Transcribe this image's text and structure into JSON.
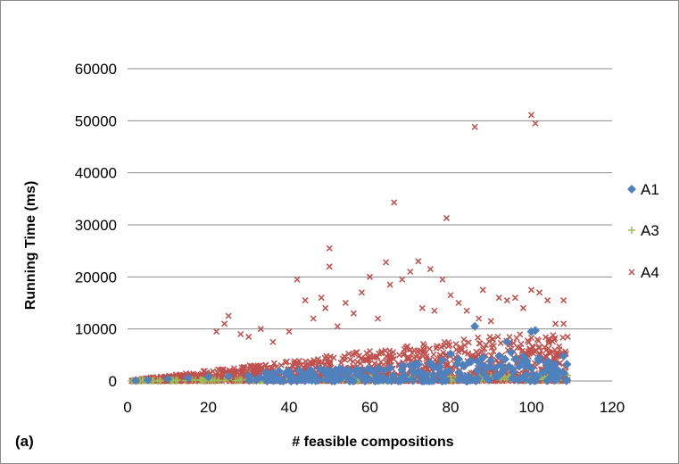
{
  "panel_label": "(a)",
  "colors": {
    "A1": "#4f81bd",
    "A3": "#9bbb59",
    "A4": "#c0504d",
    "grid": "#8c8c8c"
  },
  "chart_data": {
    "type": "scatter",
    "title": "",
    "xlabel": "# feasible compositions",
    "ylabel": "Running Time (ms)",
    "xlim": [
      0,
      120
    ],
    "ylim": [
      0,
      60000
    ],
    "xticks": [
      "0",
      "20",
      "40",
      "60",
      "80",
      "100",
      "120"
    ],
    "yticks": [
      "0",
      "10000",
      "20000",
      "30000",
      "40000",
      "50000",
      "60000"
    ],
    "grid": "horizontal",
    "legend": "right",
    "series": [
      {
        "name": "A1",
        "marker": "diamond",
        "points": [
          [
            2,
            100
          ],
          [
            5,
            200
          ],
          [
            10,
            400
          ],
          [
            15,
            600
          ],
          [
            20,
            800
          ],
          [
            25,
            900
          ],
          [
            30,
            1000
          ],
          [
            35,
            1100
          ],
          [
            40,
            1200
          ],
          [
            45,
            1400
          ],
          [
            50,
            1600
          ],
          [
            55,
            1800
          ],
          [
            60,
            2200
          ],
          [
            65,
            2500
          ],
          [
            70,
            3000
          ],
          [
            72,
            3200
          ],
          [
            75,
            3500
          ],
          [
            78,
            4000
          ],
          [
            80,
            5200
          ],
          [
            82,
            4200
          ],
          [
            85,
            3800
          ],
          [
            86,
            10500
          ],
          [
            88,
            4500
          ],
          [
            90,
            3900
          ],
          [
            92,
            4800
          ],
          [
            94,
            7500
          ],
          [
            95,
            5500
          ],
          [
            96,
            4200
          ],
          [
            98,
            4700
          ],
          [
            100,
            9500
          ],
          [
            101,
            9700
          ],
          [
            102,
            4300
          ],
          [
            104,
            3000
          ],
          [
            105,
            2600
          ],
          [
            106,
            2000
          ],
          [
            108,
            4800
          ],
          [
            108,
            1400
          ],
          [
            99,
            3200
          ],
          [
            97,
            2800
          ],
          [
            91,
            2500
          ],
          [
            83,
            3100
          ],
          [
            77,
            2700
          ],
          [
            68,
            2900
          ],
          [
            62,
            2400
          ],
          [
            57,
            2100
          ]
        ]
      },
      {
        "name": "A3",
        "marker": "plus",
        "points": [
          [
            1,
            50
          ],
          [
            3,
            80
          ],
          [
            5,
            100
          ],
          [
            8,
            150
          ],
          [
            12,
            200
          ],
          [
            16,
            250
          ],
          [
            20,
            300
          ],
          [
            25,
            350
          ],
          [
            30,
            400
          ],
          [
            35,
            450
          ],
          [
            40,
            500
          ],
          [
            45,
            550
          ],
          [
            50,
            600
          ],
          [
            55,
            650
          ],
          [
            60,
            700
          ],
          [
            65,
            750
          ],
          [
            70,
            800
          ],
          [
            75,
            850
          ],
          [
            80,
            900
          ],
          [
            85,
            950
          ],
          [
            90,
            1000
          ],
          [
            95,
            1100
          ],
          [
            100,
            1200
          ],
          [
            102,
            1300
          ],
          [
            104,
            1600
          ],
          [
            106,
            1200
          ],
          [
            107,
            1000
          ],
          [
            108,
            1700
          ],
          [
            109,
            1100
          ],
          [
            103,
            900
          ],
          [
            97,
            800
          ],
          [
            92,
            700
          ],
          [
            88,
            1200
          ],
          [
            84,
            600
          ],
          [
            78,
            500
          ],
          [
            73,
            700
          ],
          [
            68,
            600
          ]
        ]
      },
      {
        "name": "A4",
        "marker": "x",
        "points": [
          [
            22,
            9500
          ],
          [
            24,
            11000
          ],
          [
            25,
            12500
          ],
          [
            28,
            9000
          ],
          [
            30,
            8500
          ],
          [
            33,
            10000
          ],
          [
            36,
            7500
          ],
          [
            40,
            9500
          ],
          [
            42,
            19500
          ],
          [
            44,
            15500
          ],
          [
            46,
            12000
          ],
          [
            48,
            16000
          ],
          [
            49,
            14000
          ],
          [
            50,
            25500
          ],
          [
            50,
            22000
          ],
          [
            52,
            10500
          ],
          [
            54,
            15000
          ],
          [
            56,
            13000
          ],
          [
            58,
            17000
          ],
          [
            60,
            20000
          ],
          [
            62,
            12000
          ],
          [
            64,
            22800
          ],
          [
            65,
            18500
          ],
          [
            66,
            34300
          ],
          [
            68,
            19500
          ],
          [
            70,
            21000
          ],
          [
            72,
            23000
          ],
          [
            73,
            14000
          ],
          [
            75,
            21500
          ],
          [
            76,
            13500
          ],
          [
            78,
            19500
          ],
          [
            79,
            31300
          ],
          [
            80,
            16500
          ],
          [
            82,
            15000
          ],
          [
            84,
            13500
          ],
          [
            86,
            48800
          ],
          [
            87,
            12000
          ],
          [
            88,
            17500
          ],
          [
            90,
            11500
          ],
          [
            92,
            16000
          ],
          [
            94,
            15500
          ],
          [
            96,
            16000
          ],
          [
            98,
            14000
          ],
          [
            100,
            51100
          ],
          [
            101,
            49500
          ],
          [
            100,
            17500
          ],
          [
            102,
            17000
          ],
          [
            104,
            15500
          ],
          [
            106,
            11000
          ],
          [
            108,
            15500
          ],
          [
            108,
            11000
          ],
          [
            109,
            8500
          ]
        ]
      }
    ]
  }
}
